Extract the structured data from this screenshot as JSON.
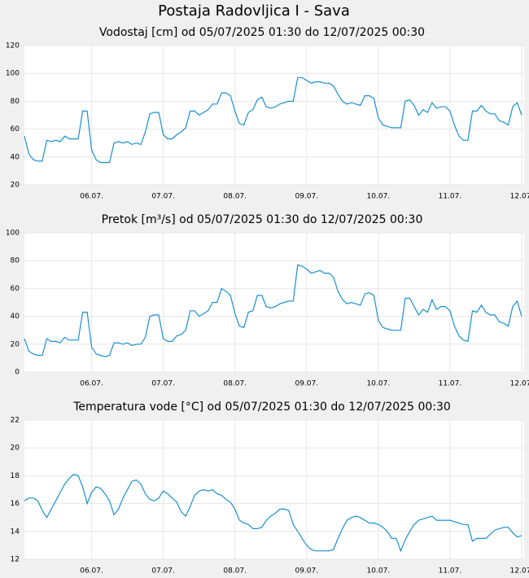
{
  "title": "Postaja Radovljica I - Sava",
  "chart_data": [
    {
      "type": "line",
      "title": "Vodostaj [cm] od 05/07/2025 01:30 do 12/07/2025 00:30",
      "categories": [
        null,
        null,
        null,
        null,
        null,
        null,
        null,
        null,
        null,
        null,
        null,
        null,
        null,
        null,
        null,
        "06.07.",
        null,
        null,
        null,
        null,
        null,
        null,
        null,
        null,
        null,
        null,
        null,
        null,
        null,
        null,
        null,
        "07.07.",
        null,
        null,
        null,
        null,
        null,
        null,
        null,
        null,
        null,
        null,
        null,
        null,
        null,
        null,
        null,
        "08.07.",
        null,
        null,
        null,
        null,
        null,
        null,
        null,
        null,
        null,
        null,
        null,
        null,
        null,
        null,
        null,
        "09.07.",
        null,
        null,
        null,
        null,
        null,
        null,
        null,
        null,
        null,
        null,
        null,
        null,
        null,
        null,
        null,
        "10.07.",
        null,
        null,
        null,
        null,
        null,
        null,
        null,
        null,
        null,
        null,
        null,
        null,
        null,
        null,
        null,
        "11.07.",
        null,
        null,
        null,
        null,
        null,
        null,
        null,
        null,
        null,
        null,
        null,
        null,
        null,
        null,
        null,
        "12.07."
      ],
      "values": [
        55,
        42,
        38,
        37,
        37,
        52,
        51,
        52,
        51,
        55,
        53,
        53,
        53,
        73,
        73,
        45,
        38,
        36,
        36,
        36,
        50,
        51,
        50,
        51,
        49,
        50,
        49,
        58,
        71,
        72,
        72,
        56,
        53,
        53,
        56,
        58,
        61,
        73,
        73,
        70,
        72,
        74,
        78,
        78,
        86,
        86,
        84,
        73,
        64,
        63,
        72,
        74,
        81,
        83,
        76,
        75,
        76,
        78,
        79,
        80,
        80,
        97,
        97,
        95,
        93,
        94,
        94,
        93,
        93,
        91,
        85,
        80,
        78,
        79,
        78,
        77,
        84,
        84,
        82,
        68,
        63,
        62,
        61,
        61,
        61,
        80,
        81,
        77,
        70,
        74,
        72,
        79,
        75,
        76,
        76,
        73,
        63,
        55,
        52,
        52,
        73,
        73,
        77,
        73,
        71,
        71,
        66,
        65,
        63,
        76,
        79,
        70
      ],
      "color": "#1a8fd0",
      "ylim": [
        20,
        120
      ],
      "yticks": [
        20,
        40,
        60,
        80,
        100,
        120
      ],
      "grid": true
    },
    {
      "type": "line",
      "title": "Pretok [m³/s] od 05/07/2025 01:30 do 12/07/2025 00:30",
      "categories": [
        null,
        null,
        null,
        null,
        null,
        null,
        null,
        null,
        null,
        null,
        null,
        null,
        null,
        null,
        null,
        "06.07.",
        null,
        null,
        null,
        null,
        null,
        null,
        null,
        null,
        null,
        null,
        null,
        null,
        null,
        null,
        null,
        "07.07.",
        null,
        null,
        null,
        null,
        null,
        null,
        null,
        null,
        null,
        null,
        null,
        null,
        null,
        null,
        null,
        "08.07.",
        null,
        null,
        null,
        null,
        null,
        null,
        null,
        null,
        null,
        null,
        null,
        null,
        null,
        null,
        null,
        "09.07.",
        null,
        null,
        null,
        null,
        null,
        null,
        null,
        null,
        null,
        null,
        null,
        null,
        null,
        null,
        null,
        "10.07.",
        null,
        null,
        null,
        null,
        null,
        null,
        null,
        null,
        null,
        null,
        null,
        null,
        null,
        null,
        null,
        "11.07.",
        null,
        null,
        null,
        null,
        null,
        null,
        null,
        null,
        null,
        null,
        null,
        null,
        null,
        null,
        null,
        "12.07."
      ],
      "values": [
        24,
        15,
        13,
        12,
        12,
        24,
        22,
        22,
        21,
        25,
        23,
        23,
        23,
        43,
        43,
        18,
        13,
        12,
        11,
        12,
        21,
        21,
        20,
        21,
        19,
        20,
        20,
        25,
        40,
        41,
        41,
        24,
        22,
        22,
        26,
        27,
        30,
        44,
        44,
        40,
        42,
        44,
        50,
        50,
        60,
        58,
        55,
        42,
        33,
        32,
        43,
        44,
        55,
        55,
        47,
        46,
        47,
        49,
        50,
        51,
        51,
        77,
        76,
        74,
        71,
        72,
        73,
        71,
        71,
        68,
        58,
        52,
        49,
        50,
        49,
        48,
        56,
        57,
        55,
        37,
        32,
        31,
        30,
        30,
        30,
        53,
        53,
        47,
        41,
        45,
        43,
        52,
        45,
        47,
        47,
        44,
        33,
        26,
        23,
        22,
        44,
        43,
        48,
        43,
        41,
        41,
        36,
        35,
        33,
        47,
        51,
        40
      ],
      "color": "#1a8fd0",
      "ylim": [
        0,
        100
      ],
      "yticks": [
        0,
        20,
        40,
        60,
        80,
        100
      ],
      "grid": true
    },
    {
      "type": "line",
      "title": "Temperatura vode [°C] od 05/07/2025 01:30 do 12/07/2025 00:30",
      "categories": [
        null,
        null,
        null,
        null,
        null,
        null,
        null,
        null,
        null,
        null,
        null,
        null,
        null,
        null,
        null,
        "06.07.",
        null,
        null,
        null,
        null,
        null,
        null,
        null,
        null,
        null,
        null,
        null,
        null,
        null,
        null,
        null,
        "07.07.",
        null,
        null,
        null,
        null,
        null,
        null,
        null,
        null,
        null,
        null,
        null,
        null,
        null,
        null,
        null,
        "08.07.",
        null,
        null,
        null,
        null,
        null,
        null,
        null,
        null,
        null,
        null,
        null,
        null,
        null,
        null,
        null,
        "09.07.",
        null,
        null,
        null,
        null,
        null,
        null,
        null,
        null,
        null,
        null,
        null,
        null,
        null,
        null,
        null,
        "10.07.",
        null,
        null,
        null,
        null,
        null,
        null,
        null,
        null,
        null,
        null,
        null,
        null,
        null,
        null,
        null,
        "11.07.",
        null,
        null,
        null,
        null,
        null,
        null,
        null,
        null,
        null,
        null,
        null,
        null,
        null,
        null,
        null,
        "12.07."
      ],
      "values": [
        16.2,
        16.4,
        16.4,
        16.2,
        15.5,
        15.0,
        15.6,
        16.2,
        16.8,
        17.4,
        17.8,
        18.1,
        18.0,
        17.2,
        16.0,
        16.8,
        17.2,
        17.1,
        16.7,
        16.2,
        15.2,
        15.6,
        16.4,
        17.0,
        17.6,
        17.7,
        17.4,
        16.7,
        16.3,
        16.2,
        16.4,
        16.9,
        16.7,
        16.4,
        16.1,
        15.4,
        15.1,
        15.8,
        16.6,
        16.9,
        17.0,
        16.9,
        17.0,
        16.7,
        16.6,
        16.3,
        16.1,
        15.6,
        14.8,
        14.6,
        14.5,
        14.2,
        14.2,
        14.3,
        14.8,
        15.1,
        15.3,
        15.6,
        15.6,
        15.5,
        14.5,
        14.0,
        13.5,
        13.0,
        12.7,
        12.6,
        12.6,
        12.6,
        12.6,
        12.7,
        13.5,
        14.2,
        14.8,
        15.0,
        15.1,
        15.0,
        14.8,
        14.6,
        14.6,
        14.5,
        14.3,
        14.0,
        13.5,
        13.5,
        12.6,
        13.4,
        14.0,
        14.5,
        14.8,
        14.9,
        15.0,
        15.1,
        14.8,
        14.8,
        14.8,
        14.8,
        14.7,
        14.6,
        14.5,
        14.5,
        13.3,
        13.5,
        13.5,
        13.5,
        13.8,
        14.1,
        14.2,
        14.3,
        14.3,
        13.9,
        13.6,
        13.7
      ],
      "color": "#1a8fd0",
      "ylim": [
        12,
        22
      ],
      "yticks": [
        12,
        14,
        16,
        18,
        20,
        22
      ],
      "grid": true
    }
  ]
}
